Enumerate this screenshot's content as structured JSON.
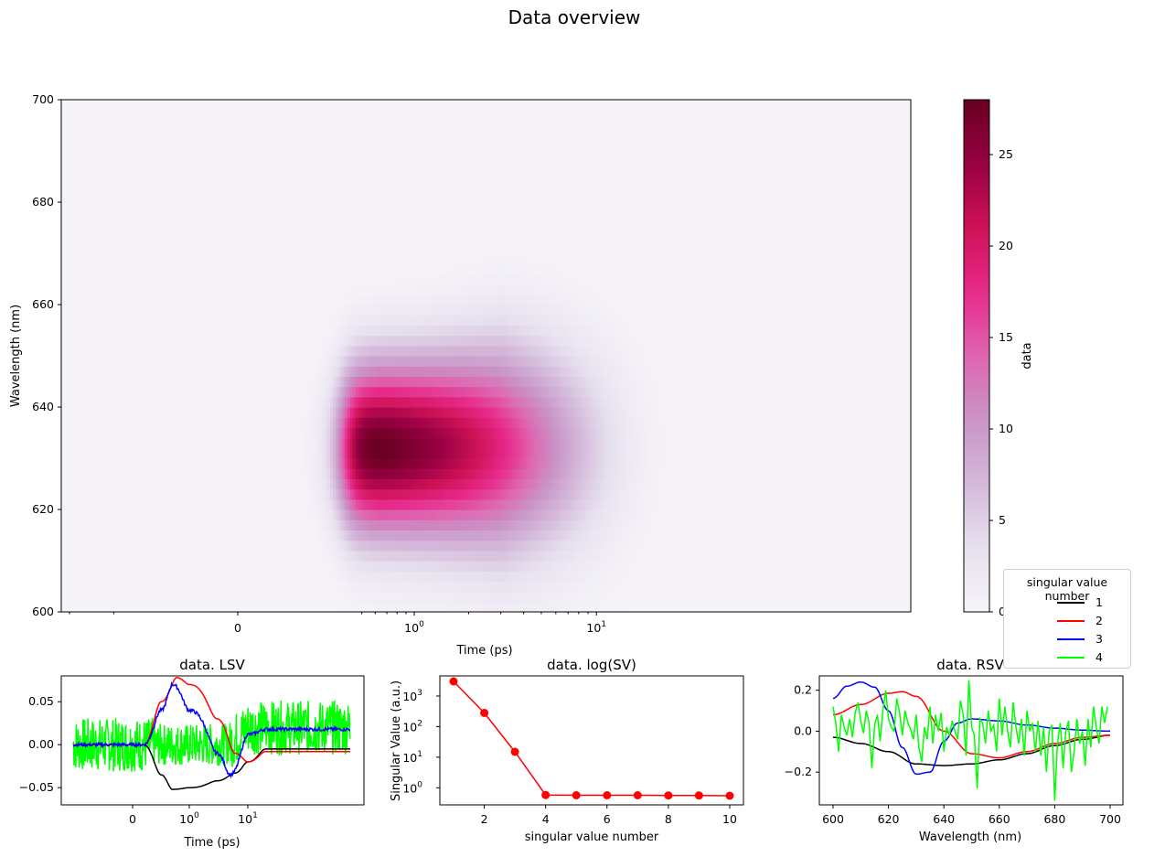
{
  "figure": {
    "title": "Data overview"
  },
  "chart_data": [
    {
      "type": "heatmap",
      "name": "main",
      "xlabel": "Time (ps)",
      "ylabel": "Wavelength (nm)",
      "xscale": "symlog (linear near 0, log above ~0.5)",
      "xlim": [
        -1,
        16
      ],
      "ylim": [
        600,
        700
      ],
      "xticks": [
        {
          "label": "0",
          "value": 0
        },
        {
          "label": "10",
          "sup": "0",
          "value": 1
        },
        {
          "label": "10",
          "sup": "1",
          "value": 10
        }
      ],
      "yticks": [
        "600",
        "620",
        "640",
        "660",
        "680",
        "700"
      ],
      "colormap": "PuRd",
      "colorbar": {
        "label": "data",
        "range": [
          0,
          28
        ],
        "ticks": [
          "0",
          "5",
          "10",
          "15",
          "20",
          "25"
        ]
      },
      "peak": {
        "wavelength": 632,
        "time": 0.65,
        "value": 28
      }
    },
    {
      "type": "line",
      "name": "lsv",
      "title": "data. LSV",
      "xlabel": "Time (ps)",
      "xscale": "symlog",
      "xlim": [
        -1,
        20
      ],
      "ylim": [
        -0.07,
        0.08
      ],
      "yticks": [
        "0.05",
        "0.00",
        "−0.05"
      ],
      "xticks": [
        {
          "label": "0",
          "value": 0
        },
        {
          "label": "10",
          "sup": "0",
          "value": 1
        },
        {
          "label": "10",
          "sup": "1",
          "value": 10
        }
      ],
      "series": [
        {
          "name": "1",
          "color": "#000000",
          "x": [
            -0.9,
            0.1,
            0.3,
            0.5,
            1,
            3,
            6,
            10,
            20
          ],
          "values": [
            0.0,
            0.0,
            -0.035,
            -0.052,
            -0.05,
            -0.042,
            -0.033,
            -0.02,
            -0.005
          ]
        },
        {
          "name": "2",
          "color": "#ff0000",
          "x": [
            -0.9,
            0.1,
            0.3,
            0.6,
            1,
            3,
            6,
            10,
            20
          ],
          "values": [
            0.0,
            0.0,
            0.05,
            0.078,
            0.07,
            0.03,
            -0.01,
            -0.02,
            -0.008
          ]
        },
        {
          "name": "3",
          "color": "#0000ff",
          "x": [
            -0.9,
            0.1,
            0.3,
            0.5,
            1,
            3,
            5,
            10,
            20
          ],
          "values": [
            0.0,
            0.0,
            0.04,
            0.07,
            0.04,
            -0.01,
            -0.035,
            0.012,
            0.018
          ]
        },
        {
          "name": "4",
          "color": "#00ff00",
          "noise": 0.035,
          "x": [
            -0.9,
            20
          ],
          "values": [
            0.0,
            0.0
          ]
        }
      ]
    },
    {
      "type": "line",
      "name": "sv",
      "title": "data. log(SV)",
      "xlabel": "singular value number",
      "ylabel": "Singular Value (a.u.)",
      "yscale": "log",
      "xticks": [
        "2",
        "4",
        "6",
        "8",
        "10"
      ],
      "yticks": [
        {
          "label": "10",
          "sup": "0",
          "value": 1
        },
        {
          "label": "10",
          "sup": "1",
          "value": 10
        },
        {
          "label": "10",
          "sup": "2",
          "value": 100
        },
        {
          "label": "10",
          "sup": "3",
          "value": 1000
        }
      ],
      "color": "#ff0000",
      "x": [
        1,
        2,
        3,
        4,
        5,
        6,
        7,
        8,
        9,
        10
      ],
      "values": [
        3000,
        280,
        15,
        0.58,
        0.57,
        0.57,
        0.57,
        0.56,
        0.56,
        0.55
      ]
    },
    {
      "type": "line",
      "name": "rsv",
      "title": "data. RSV",
      "xlabel": "Wavelength (nm)",
      "xlim": [
        596,
        704
      ],
      "ylim": [
        -0.36,
        0.27
      ],
      "xticks": [
        "600",
        "620",
        "640",
        "660",
        "680",
        "700"
      ],
      "yticks": [
        "0.2",
        "0.0",
        "−0.2"
      ],
      "series": [
        {
          "name": "1",
          "color": "#000000",
          "x": [
            600,
            610,
            620,
            630,
            640,
            650,
            660,
            670,
            680,
            690,
            700
          ],
          "values": [
            -0.03,
            -0.06,
            -0.1,
            -0.16,
            -0.168,
            -0.16,
            -0.14,
            -0.11,
            -0.07,
            -0.04,
            -0.02
          ]
        },
        {
          "name": "2",
          "color": "#ff0000",
          "x": [
            600,
            610,
            620,
            625,
            630,
            640,
            650,
            660,
            670,
            680,
            690,
            700
          ],
          "values": [
            0.08,
            0.13,
            0.185,
            0.193,
            0.17,
            0.0,
            -0.11,
            -0.13,
            -0.1,
            -0.06,
            -0.03,
            -0.02
          ]
        },
        {
          "name": "3",
          "color": "#0000ff",
          "x": [
            600,
            605,
            610,
            615,
            620,
            625,
            630,
            635,
            640,
            645,
            650,
            660,
            670,
            680,
            690,
            700
          ],
          "values": [
            0.16,
            0.22,
            0.24,
            0.215,
            0.1,
            -0.08,
            -0.21,
            -0.2,
            -0.05,
            0.04,
            0.06,
            0.05,
            0.03,
            0.015,
            0.005,
            0.0
          ]
        },
        {
          "name": "4",
          "color": "#00ff00",
          "x": [
            600,
            601,
            602,
            603,
            604,
            605,
            606,
            607,
            608,
            609,
            610,
            611,
            612,
            613,
            614,
            615,
            616,
            617,
            618,
            619,
            620,
            621,
            622,
            623,
            624,
            625,
            626,
            627,
            628,
            629,
            630,
            631,
            632,
            633,
            634,
            635,
            636,
            637,
            638,
            639,
            640,
            641,
            642,
            643,
            644,
            645,
            646,
            647,
            648,
            649,
            650,
            651,
            652,
            653,
            654,
            655,
            656,
            657,
            658,
            659,
            660,
            661,
            662,
            663,
            664,
            665,
            666,
            667,
            668,
            669,
            670,
            671,
            672,
            673,
            674,
            675,
            676,
            677,
            678,
            679,
            680,
            681,
            682,
            683,
            684,
            685,
            686,
            687,
            688,
            689,
            690,
            691,
            692,
            693,
            694,
            695,
            696,
            697,
            698,
            699
          ],
          "values": [
            0.12,
            0.04,
            -0.1,
            0.08,
            0.02,
            -0.02,
            0.06,
            -0.03,
            0.09,
            0.14,
            0.05,
            -0.01,
            0.1,
            0.04,
            -0.18,
            0.03,
            0.08,
            -0.05,
            0.1,
            0.2,
            0.06,
            0.02,
            0.0,
            0.16,
            0.09,
            -0.02,
            0.1,
            0.04,
            0.01,
            -0.04,
            0.08,
            -0.08,
            -0.15,
            0.02,
            -0.04,
            0.12,
            -0.06,
            0.08,
            0.0,
            0.09,
            -0.1,
            0.02,
            -0.02,
            0.05,
            0.0,
            -0.04,
            0.15,
            0.08,
            -0.12,
            0.25,
            0.02,
            -0.02,
            -0.28,
            0.06,
            0.04,
            -0.06,
            0.1,
            0.0,
            0.03,
            -0.1,
            0.16,
            -0.02,
            0.12,
            0.0,
            -0.08,
            0.14,
            0.02,
            -0.06,
            0.06,
            -0.12,
            0.1,
            0.0,
            0.04,
            -0.1,
            0.05,
            -0.12,
            0.02,
            -0.2,
            0.0,
            0.03,
            -0.34,
            -0.06,
            0.04,
            -0.18,
            0.0,
            0.05,
            -0.2,
            -0.1,
            0.06,
            -0.06,
            0.0,
            -0.17,
            0.06,
            -0.08,
            0.12,
            0.02,
            -0.06,
            0.12,
            0.04,
            0.12
          ]
        }
      ]
    }
  ],
  "legend": {
    "title": "singular value number",
    "items": [
      {
        "label": "1",
        "color": "#000000"
      },
      {
        "label": "2",
        "color": "#ff0000"
      },
      {
        "label": "3",
        "color": "#0000ff"
      },
      {
        "label": "4",
        "color": "#00ff00"
      }
    ]
  }
}
